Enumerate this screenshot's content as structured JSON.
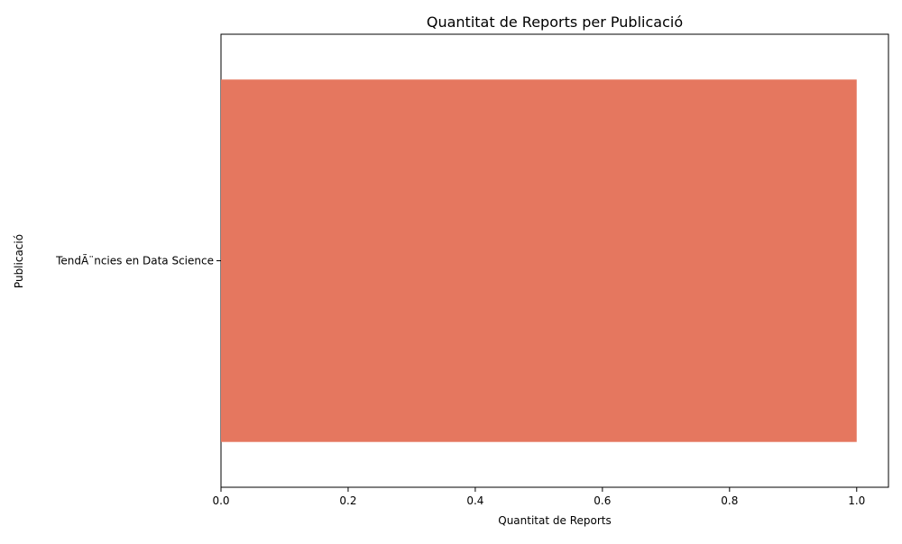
{
  "chart_data": {
    "type": "bar",
    "orientation": "horizontal",
    "title": "Quantitat de Reports per Publicació",
    "xlabel": "Quantitat de Reports",
    "ylabel": "Publicació",
    "categories": [
      "TendÃ¨ncies en Data Science"
    ],
    "values": [
      1
    ],
    "xlim": [
      0,
      1.05
    ],
    "xticks": [
      "0.0",
      "0.2",
      "0.4",
      "0.6",
      "0.8",
      "1.0"
    ],
    "bar_color": "#e5775f",
    "grid": false,
    "legend": "none"
  }
}
